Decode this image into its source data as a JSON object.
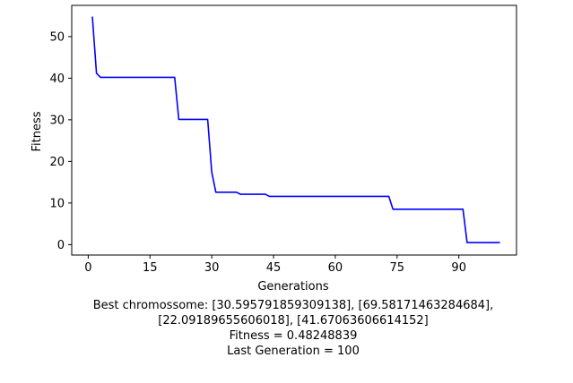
{
  "chart_data": {
    "type": "line",
    "xlabel": "Generations",
    "ylabel": "Fitness",
    "xlim": [
      -4,
      104
    ],
    "ylim": [
      -2.5,
      57.5
    ],
    "xticks": [
      0,
      15,
      30,
      45,
      60,
      75,
      90
    ],
    "yticks": [
      0,
      10,
      20,
      30,
      40,
      50
    ],
    "grid": false,
    "series": [
      {
        "color": "#0000ff",
        "x": [
          1,
          2,
          3,
          4,
          21,
          22,
          23,
          29,
          30,
          31,
          32,
          36,
          37,
          43,
          44,
          73,
          74,
          91,
          92,
          100
        ],
        "y": [
          54.8,
          41.2,
          40.2,
          40.2,
          40.2,
          30.1,
          30.1,
          30.1,
          17.5,
          12.6,
          12.6,
          12.6,
          12.1,
          12.1,
          11.6,
          11.6,
          8.5,
          8.5,
          0.48,
          0.48
        ]
      }
    ]
  },
  "caption": {
    "line1": "Best chromossome: [30.595791859309138], [69.58171463284684],",
    "line2": "[22.09189655606018], [41.67063606614152]",
    "line3": "Fitness = 0.48248839",
    "line4": "Last Generation = 100"
  }
}
